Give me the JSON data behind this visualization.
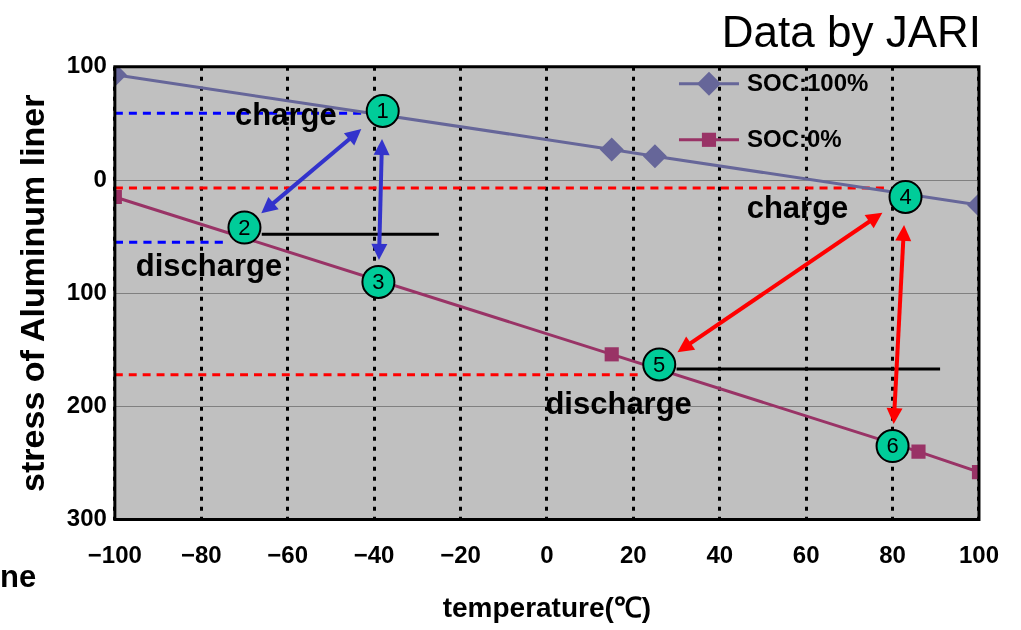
{
  "chart_data": {
    "type": "line",
    "title": "Data by JARI",
    "xlabel": "temperature(℃)",
    "ylabel": "stress of Aluminum liner",
    "xlim": [
      -100,
      100
    ],
    "xticks": [
      -100,
      -80,
      -60,
      -40,
      -20,
      0,
      20,
      40,
      60,
      80,
      100
    ],
    "ylim": [
      300,
      -100
    ],
    "yticks": [
      {
        "value": -100,
        "label": "100"
      },
      0,
      100,
      200,
      300
    ],
    "grid": true,
    "legend": "top right",
    "line_style": "solid",
    "series": [
      {
        "name": "SOC:100%",
        "color": "#666699",
        "marker": "diamond",
        "x": [
          -100,
          15,
          25,
          100
        ],
        "values": [
          -93,
          -27,
          -21,
          22
        ]
      },
      {
        "name": "SOC:0%",
        "color": "#993366",
        "marker": "square",
        "x": [
          -100,
          15,
          86,
          100
        ],
        "values": [
          15,
          154,
          240,
          258
        ]
      },
      {
        "color": "#0000ff",
        "marker": "none",
        "line_style": "dashed",
        "x": [
          -100,
          -43
        ],
        "values": [
          -59,
          -59
        ]
      },
      {
        "color": "#0000ff",
        "marker": "none",
        "line_style": "dashed",
        "x": [
          -100,
          -75
        ],
        "values": [
          55,
          55
        ]
      },
      {
        "color": "#ff0000",
        "marker": "none",
        "line_style": "dashed",
        "x": [
          -100,
          78
        ],
        "values": [
          7,
          7
        ]
      },
      {
        "color": "#ff0000",
        "marker": "none",
        "line_style": "dashed",
        "x": [
          -100,
          21
        ],
        "values": [
          172,
          172
        ]
      },
      {
        "color": "#000000",
        "marker": "none",
        "line_style": "solid",
        "x": [
          -66,
          -25
        ],
        "values": [
          48,
          48
        ]
      },
      {
        "color": "#000000",
        "marker": "none",
        "line_style": "solid",
        "x": [
          30,
          91
        ],
        "values": [
          167,
          167
        ]
      }
    ],
    "annotations": [
      {
        "text": "1",
        "x": -38,
        "y": -61
      },
      {
        "text": "2",
        "x": -70,
        "y": 42
      },
      {
        "text": "3",
        "x": -39,
        "y": 90
      },
      {
        "text": "4",
        "x": 83,
        "y": 15
      },
      {
        "text": "5",
        "x": 26,
        "y": 163
      },
      {
        "text": "6",
        "x": 80,
        "y": 235
      },
      "charge",
      "discharge",
      "charge",
      "discharge",
      "ne"
    ]
  }
}
